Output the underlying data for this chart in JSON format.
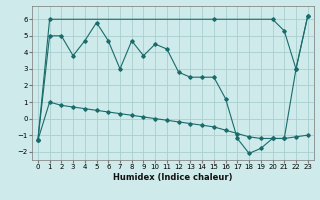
{
  "xlabel": "Humidex (Indice chaleur)",
  "background_color": "#ceeaea",
  "grid_color": "#aacfcf",
  "line_color": "#1a6b6b",
  "xlim": [
    -0.5,
    23.5
  ],
  "ylim": [
    -2.5,
    6.8
  ],
  "xticks": [
    0,
    1,
    2,
    3,
    4,
    5,
    6,
    7,
    8,
    9,
    10,
    11,
    12,
    13,
    14,
    15,
    16,
    17,
    18,
    19,
    20,
    21,
    22,
    23
  ],
  "yticks": [
    -2,
    -1,
    0,
    1,
    2,
    3,
    4,
    5,
    6
  ],
  "series1_x": [
    0,
    1,
    2,
    3,
    4,
    5,
    6,
    7,
    8,
    9,
    10,
    11,
    12,
    13,
    14,
    15,
    16,
    17,
    18,
    19,
    20,
    21,
    22,
    23
  ],
  "series1_y": [
    -1.3,
    5.0,
    5.0,
    3.8,
    4.7,
    5.8,
    4.7,
    3.0,
    4.7,
    3.8,
    4.5,
    4.2,
    2.8,
    2.5,
    2.5,
    2.5,
    1.2,
    -1.2,
    -2.1,
    -1.8,
    -1.2,
    -1.2,
    3.0,
    6.2
  ],
  "series2_x": [
    0,
    1,
    2,
    3,
    4,
    5,
    6,
    7,
    8,
    9,
    10,
    11,
    12,
    13,
    14,
    15,
    16,
    17,
    18,
    19,
    20,
    21,
    22,
    23
  ],
  "series2_y": [
    -1.3,
    1.0,
    0.8,
    0.7,
    0.6,
    0.5,
    0.4,
    0.3,
    0.2,
    0.1,
    0.0,
    -0.1,
    -0.2,
    -0.3,
    -0.4,
    -0.5,
    -0.7,
    -0.9,
    -1.1,
    -1.2,
    -1.2,
    -1.2,
    -1.1,
    -1.0
  ],
  "series3_x": [
    0,
    1,
    15,
    20,
    21,
    22,
    23
  ],
  "series3_y": [
    -1.3,
    6.0,
    6.0,
    6.0,
    5.3,
    3.0,
    6.2
  ]
}
